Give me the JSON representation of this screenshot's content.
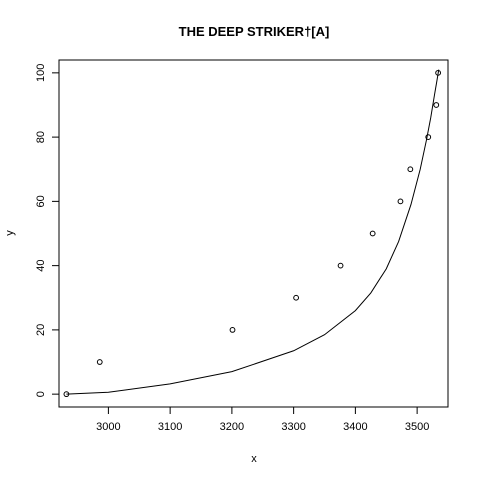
{
  "chart_data": {
    "type": "scatter",
    "title": "THE DEEP STRIKER†[A]",
    "xlabel": "x",
    "ylabel": "y",
    "xlim": [
      2920,
      3550
    ],
    "ylim": [
      -4,
      104
    ],
    "xticks": [
      3000,
      3100,
      3200,
      3300,
      3400,
      3500
    ],
    "yticks": [
      0,
      20,
      40,
      60,
      80,
      100
    ],
    "grid": false,
    "legend": "none",
    "series": [
      {
        "kind": "points",
        "x": [
          2932,
          2986,
          3201,
          3304,
          3376,
          3428,
          3473,
          3489,
          3518,
          3531,
          3534
        ],
        "y": [
          0,
          10,
          20,
          30,
          40,
          50,
          60,
          70,
          80,
          90,
          100
        ]
      },
      {
        "kind": "line",
        "x": [
          2932,
          3000,
          3100,
          3200,
          3300,
          3350,
          3400,
          3425,
          3450,
          3470,
          3490,
          3505,
          3515,
          3522,
          3528,
          3532,
          3535
        ],
        "y": [
          0,
          0.6,
          3.2,
          7.0,
          13.5,
          18.5,
          26.0,
          31.5,
          39.0,
          47.5,
          59.0,
          70.0,
          79.0,
          86.0,
          93.0,
          97.5,
          101.0
        ]
      }
    ],
    "colors": {
      "axis": "#000000",
      "points": "#000000",
      "line": "#000000",
      "background": "#ffffff"
    }
  }
}
